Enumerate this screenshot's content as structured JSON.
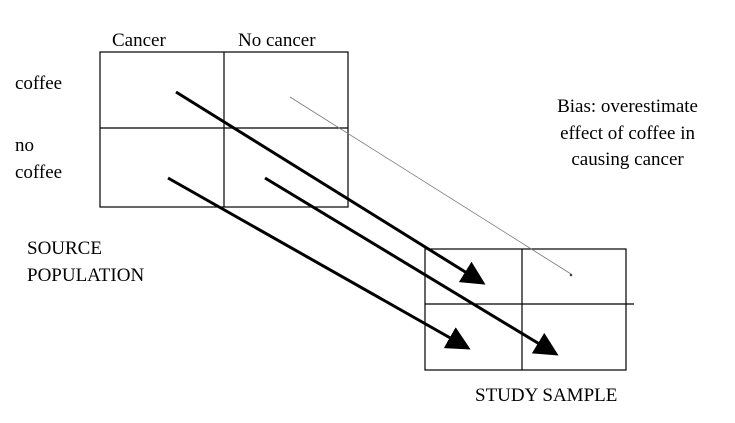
{
  "source_table": {
    "col_headers": [
      "Cancer",
      "No cancer"
    ],
    "row_labels": [
      [
        "coffee"
      ],
      [
        "no",
        "coffee"
      ]
    ]
  },
  "source_label": [
    "SOURCE",
    "POPULATION"
  ],
  "sample_label": "STUDY SAMPLE",
  "bias_note": [
    "Bias: overestimate",
    "effect of coffee in",
    "causing cancer"
  ]
}
